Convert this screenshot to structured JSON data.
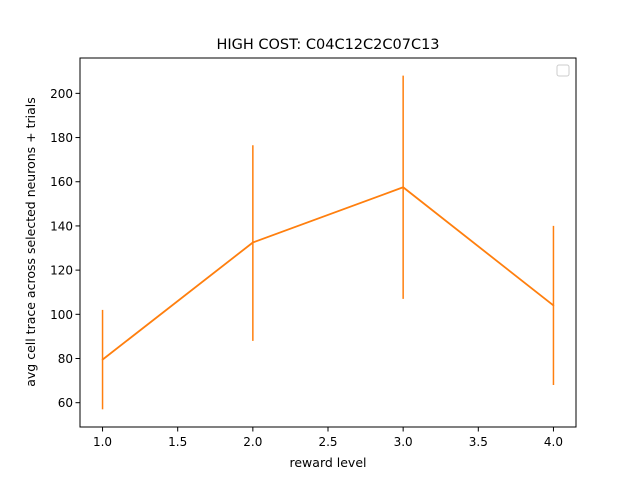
{
  "chart_data": {
    "type": "line",
    "title": "HIGH COST: C04C12C2C07C13",
    "xlabel": "reward level",
    "ylabel": "avg cell trace across selected neurons + trials",
    "xlim": [
      0.85,
      4.15
    ],
    "ylim": [
      49,
      216
    ],
    "xticks": [
      1.0,
      1.5,
      2.0,
      2.5,
      3.0,
      3.5,
      4.0
    ],
    "xtick_labels": [
      "1.0",
      "1.5",
      "2.0",
      "2.5",
      "3.0",
      "3.5",
      "4.0"
    ],
    "yticks": [
      60,
      80,
      100,
      120,
      140,
      160,
      180,
      200
    ],
    "ytick_labels": [
      "60",
      "80",
      "100",
      "120",
      "140",
      "160",
      "180",
      "200"
    ],
    "grid": false,
    "legend": {
      "placement": "upper right",
      "entries": []
    },
    "series": [
      {
        "color": "#ff7f0e",
        "line_color": "#ff7f0e",
        "x": [
          1.0,
          2.0,
          3.0,
          4.0
        ],
        "y": [
          79.5,
          132.5,
          157.5,
          104.0
        ],
        "yerr_low": [
          57.0,
          88.0,
          107.0,
          68.0
        ],
        "yerr_high": [
          102.0,
          176.5,
          208.0,
          140.0
        ]
      }
    ]
  }
}
